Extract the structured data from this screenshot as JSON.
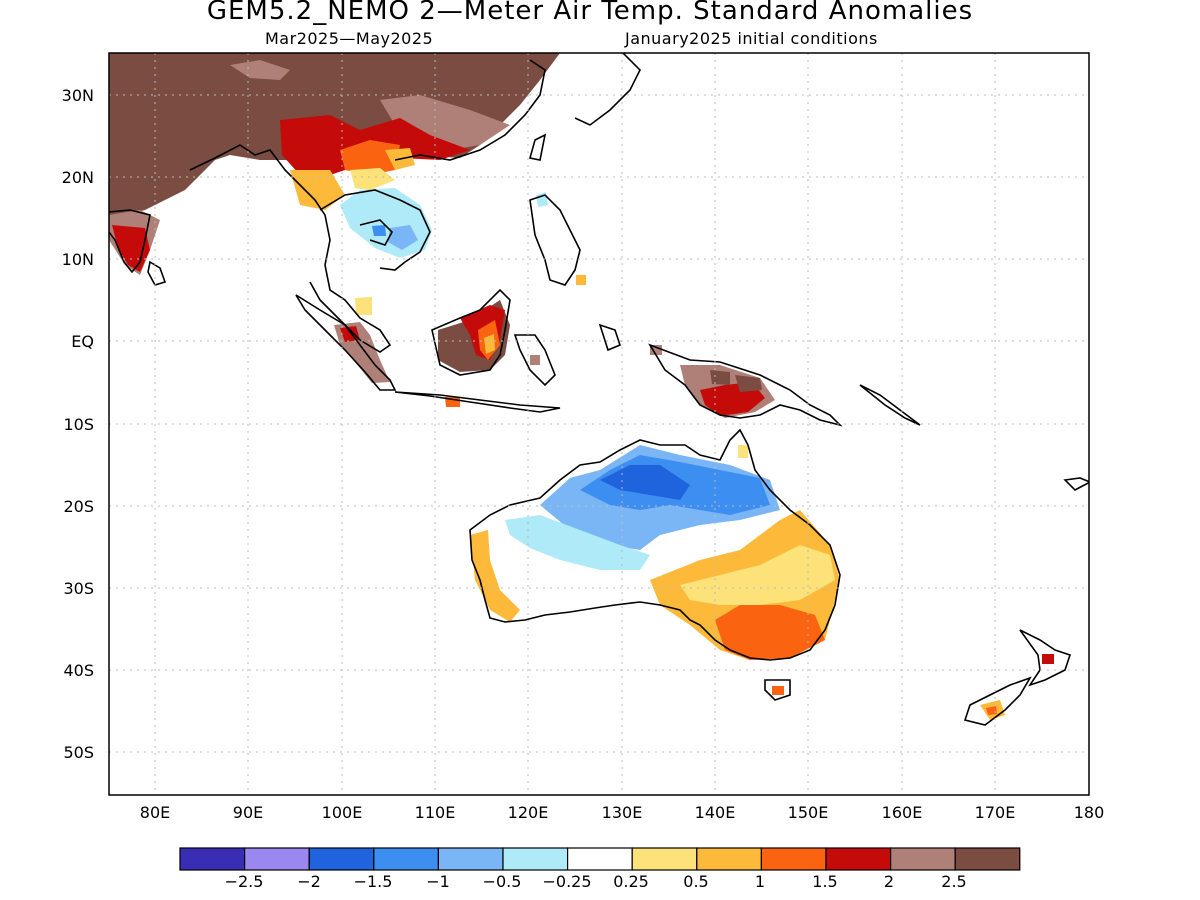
{
  "title": "GEM5.2_NEMO 2—Meter Air Temp. Standard Anomalies",
  "subtitle_left": "Mar2025—May2025",
  "subtitle_right": "January2025 initial conditions",
  "lat_labels": [
    "30N",
    "20N",
    "10N",
    "EQ",
    "10S",
    "20S",
    "30S",
    "40S",
    "50S"
  ],
  "lon_labels": [
    "80E",
    "90E",
    "100E",
    "110E",
    "120E",
    "130E",
    "140E",
    "150E",
    "160E",
    "170E",
    "180"
  ],
  "colorbar": {
    "labels": [
      "−2.5",
      "−2",
      "−1.5",
      "−1",
      "−0.5",
      "−0.25",
      "0.25",
      "0.5",
      "1",
      "1.5",
      "2",
      "2.5"
    ],
    "colors": [
      "#3a2db5",
      "#9a88f0",
      "#1f63dd",
      "#3c8ff0",
      "#7ab5f5",
      "#aeeaf7",
      "#ffffff",
      "#fde27a",
      "#fdba3a",
      "#fa6410",
      "#c50a0a",
      "#ae8078",
      "#7a4c42"
    ]
  },
  "map_extent": {
    "lon_min": 75,
    "lon_max": 180,
    "lat_min": -55,
    "lat_max": 35
  },
  "colors": {
    "land_outline": "#000000",
    "grid": "#bbbbbb",
    "frame": "#000000"
  }
}
